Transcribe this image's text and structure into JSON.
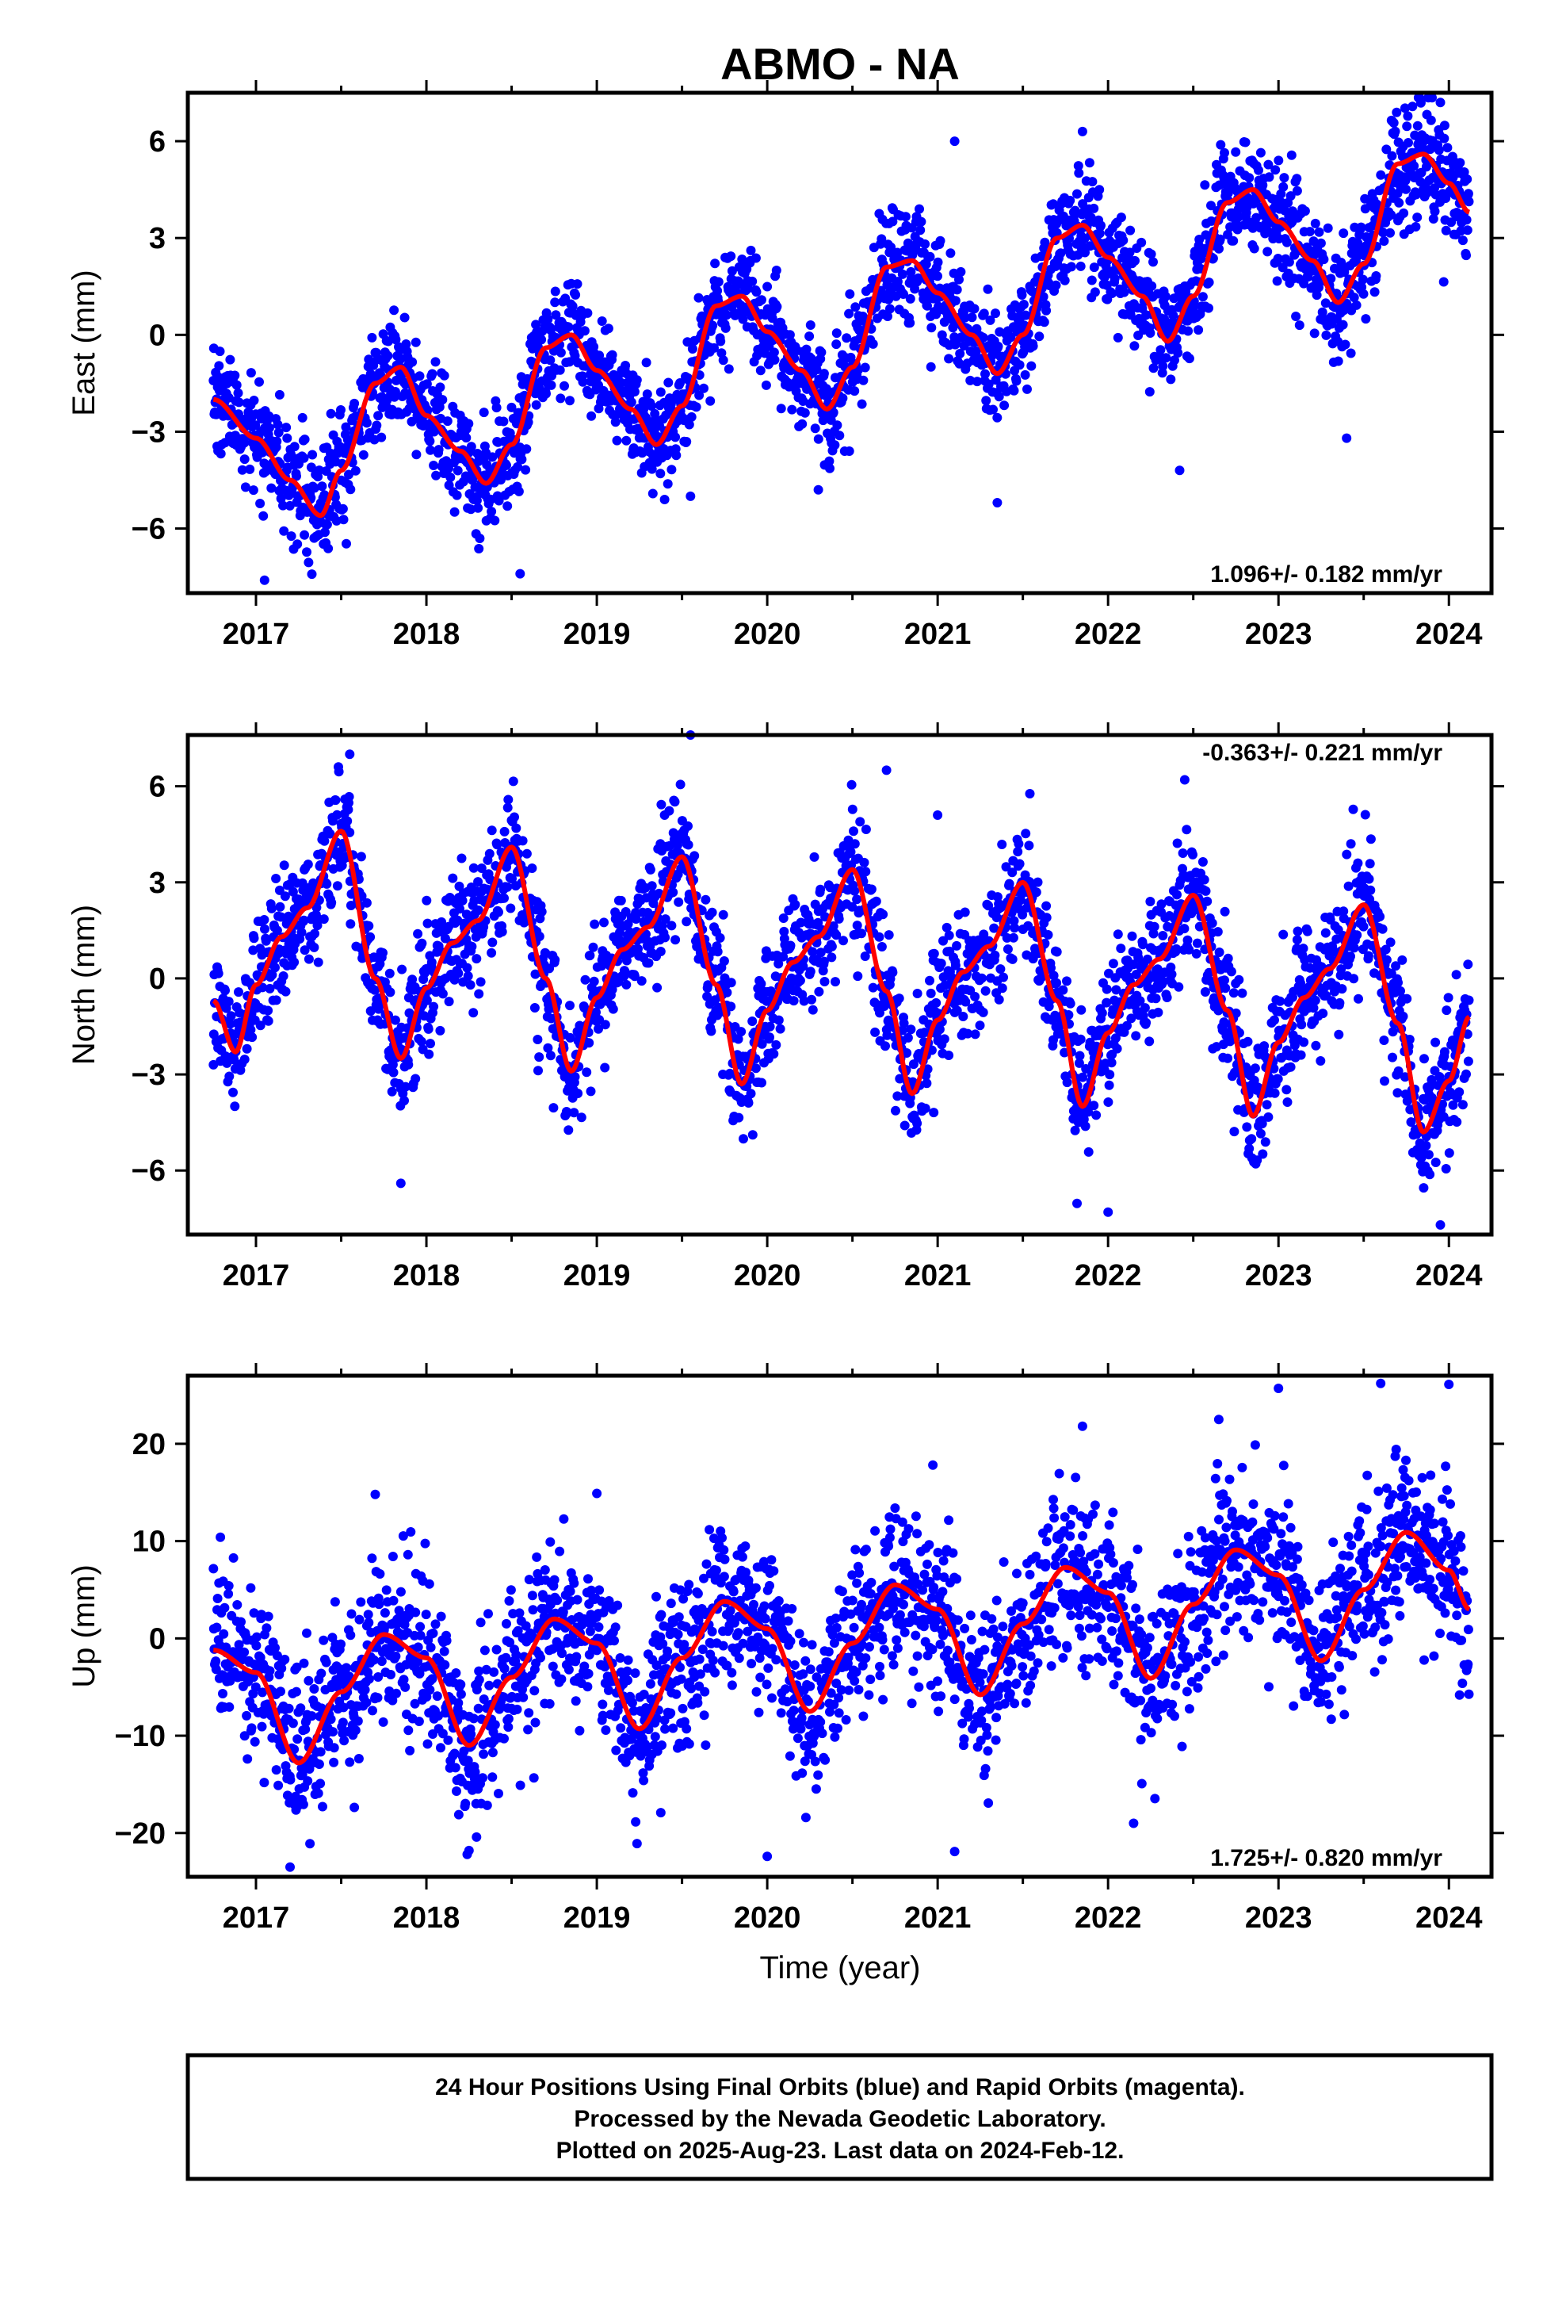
{
  "title": "ABMO - NA",
  "xlabel": "Time (year)",
  "footer": {
    "line1": "24 Hour Positions Using Final Orbits (blue) and Rapid Orbits (magenta).",
    "line2": "Processed by the Nevada Geodetic Laboratory.",
    "line3": "Plotted on 2025-Aug-23. Last data on 2024-Feb-12."
  },
  "colors": {
    "points": "#0000ff",
    "model": "#ff0000",
    "frame": "#000000"
  },
  "chart_data": [
    {
      "type": "scatter",
      "ylabel": "East (mm)",
      "xlim": [
        2016.6,
        2024.25
      ],
      "ylim": [
        -8,
        7.5
      ],
      "x_ticks": [
        2017,
        2018,
        2019,
        2020,
        2021,
        2022,
        2023,
        2024
      ],
      "y_ticks": [
        -6,
        -3,
        0,
        3,
        6
      ],
      "y_tick_labels": [
        "−6",
        "−3",
        "0",
        "3",
        "6"
      ],
      "rate_text": "1.096+/- 0.182 mm/yr",
      "rate_position": "bottom-right",
      "data_range": [
        2016.75,
        2024.12
      ],
      "model": {
        "name": "model",
        "x": [
          2016.75,
          2017.0,
          2017.2,
          2017.38,
          2017.5,
          2017.7,
          2017.85,
          2018.0,
          2018.2,
          2018.35,
          2018.5,
          2018.7,
          2018.85,
          2019.0,
          2019.2,
          2019.35,
          2019.5,
          2019.7,
          2019.85,
          2020.0,
          2020.2,
          2020.35,
          2020.5,
          2020.7,
          2020.85,
          2021.0,
          2021.2,
          2021.35,
          2021.5,
          2021.7,
          2021.85,
          2022.0,
          2022.2,
          2022.35,
          2022.5,
          2022.7,
          2022.85,
          2023.0,
          2023.2,
          2023.35,
          2023.5,
          2023.7,
          2023.85,
          2024.0,
          2024.12
        ],
        "y": [
          -2.0,
          -3.2,
          -4.5,
          -5.6,
          -4.2,
          -1.5,
          -1.0,
          -2.5,
          -3.6,
          -4.6,
          -3.4,
          -0.4,
          0.0,
          -1.1,
          -2.3,
          -3.4,
          -2.2,
          0.9,
          1.2,
          0.1,
          -1.1,
          -2.3,
          -1.0,
          2.1,
          2.3,
          1.3,
          0.0,
          -1.2,
          0.0,
          3.0,
          3.4,
          2.4,
          1.2,
          -0.2,
          1.2,
          4.1,
          4.5,
          3.5,
          2.3,
          1.0,
          2.2,
          5.3,
          5.6,
          4.7,
          3.8
        ]
      },
      "seasonal": {
        "noise_sd": 0.85
      },
      "outliers": [
        [
          2017.05,
          -7.6
        ],
        [
          2018.55,
          -7.4
        ],
        [
          2021.35,
          -5.2
        ],
        [
          2022.42,
          -4.2
        ],
        [
          2023.4,
          -3.2
        ],
        [
          2021.1,
          6.0
        ],
        [
          2019.55,
          -5.0
        ],
        [
          2023.95,
          7.2
        ],
        [
          2021.85,
          6.3
        ],
        [
          2020.3,
          -4.8
        ]
      ]
    },
    {
      "type": "scatter",
      "ylabel": "North (mm)",
      "xlim": [
        2016.6,
        2024.25
      ],
      "ylim": [
        -8,
        7.6
      ],
      "x_ticks": [
        2017,
        2018,
        2019,
        2020,
        2021,
        2022,
        2023,
        2024
      ],
      "y_ticks": [
        -6,
        -3,
        0,
        3,
        6
      ],
      "y_tick_labels": [
        "−6",
        "−3",
        "0",
        "3",
        "6"
      ],
      "rate_text": "-0.363+/- 0.221 mm/yr",
      "rate_position": "top-right",
      "data_range": [
        2016.75,
        2024.12
      ],
      "model": {
        "name": "model",
        "x": [
          2016.75,
          2016.88,
          2017.0,
          2017.15,
          2017.3,
          2017.5,
          2017.7,
          2017.85,
          2018.0,
          2018.15,
          2018.3,
          2018.5,
          2018.7,
          2018.85,
          2019.0,
          2019.15,
          2019.3,
          2019.5,
          2019.7,
          2019.85,
          2020.0,
          2020.15,
          2020.3,
          2020.5,
          2020.7,
          2020.85,
          2021.0,
          2021.15,
          2021.3,
          2021.5,
          2021.7,
          2021.85,
          2022.0,
          2022.15,
          2022.3,
          2022.5,
          2022.7,
          2022.85,
          2023.0,
          2023.15,
          2023.3,
          2023.5,
          2023.7,
          2023.85,
          2024.0,
          2024.12
        ],
        "y": [
          -0.7,
          -2.3,
          -0.2,
          1.3,
          2.2,
          4.6,
          0.0,
          -2.5,
          -0.3,
          1.1,
          1.8,
          4.1,
          0.0,
          -2.9,
          -0.6,
          0.9,
          1.6,
          3.8,
          -0.2,
          -3.3,
          -1.0,
          0.5,
          1.3,
          3.4,
          -0.4,
          -3.6,
          -1.3,
          0.2,
          1.0,
          3.0,
          -0.7,
          -4.0,
          -1.7,
          -0.2,
          0.6,
          2.6,
          -1.0,
          -4.3,
          -2.0,
          -0.6,
          0.3,
          2.3,
          -1.4,
          -4.8,
          -3.2,
          -1.2
        ]
      },
      "seasonal": {
        "noise_sd": 1.0
      },
      "outliers": [
        [
          2019.55,
          7.6
        ],
        [
          2022.45,
          6.2
        ],
        [
          2023.95,
          -7.7
        ],
        [
          2022.0,
          -7.3
        ],
        [
          2017.85,
          -6.4
        ],
        [
          2020.7,
          6.5
        ],
        [
          2017.55,
          7.0
        ],
        [
          2021.0,
          5.1
        ]
      ]
    },
    {
      "type": "scatter",
      "ylabel": "Up (mm)",
      "xlim": [
        2016.6,
        2024.25
      ],
      "ylim": [
        -24.5,
        27
      ],
      "x_ticks": [
        2017,
        2018,
        2019,
        2020,
        2021,
        2022,
        2023,
        2024
      ],
      "y_ticks": [
        -20,
        -10,
        0,
        10,
        20
      ],
      "y_tick_labels": [
        "−20",
        "−10",
        "0",
        "10",
        "20"
      ],
      "rate_text": "1.725+/- 0.820 mm/yr",
      "rate_position": "bottom-right",
      "data_range": [
        2016.75,
        2024.12
      ],
      "model": {
        "name": "model",
        "x": [
          2016.75,
          2017.0,
          2017.25,
          2017.5,
          2017.75,
          2018.0,
          2018.25,
          2018.5,
          2018.75,
          2019.0,
          2019.25,
          2019.5,
          2019.75,
          2020.0,
          2020.25,
          2020.5,
          2020.75,
          2021.0,
          2021.25,
          2021.5,
          2021.75,
          2022.0,
          2022.25,
          2022.5,
          2022.75,
          2023.0,
          2023.25,
          2023.5,
          2023.75,
          2024.0,
          2024.12
        ],
        "y": [
          -1.2,
          -3.5,
          -12.8,
          -5.5,
          0.4,
          -2.0,
          -11.0,
          -4.0,
          2.0,
          -0.5,
          -9.3,
          -2.0,
          3.8,
          1.0,
          -7.5,
          -0.5,
          5.5,
          3.0,
          -5.8,
          1.5,
          7.3,
          4.7,
          -4.1,
          3.5,
          9.1,
          6.5,
          -2.3,
          5.0,
          10.9,
          7.0,
          3.0
        ]
      },
      "seasonal": {
        "noise_sd": 4.2
      },
      "outliers": [
        [
          2017.2,
          -23.5
        ],
        [
          2018.25,
          -21.8
        ],
        [
          2020.0,
          -22.4
        ],
        [
          2021.1,
          -21.9
        ],
        [
          2022.15,
          -19.0
        ],
        [
          2023.0,
          25.7
        ],
        [
          2023.6,
          26.2
        ],
        [
          2024.0,
          26.1
        ],
        [
          2022.65,
          22.5
        ],
        [
          2021.85,
          21.8
        ],
        [
          2017.7,
          14.8
        ],
        [
          2019.0,
          14.9
        ]
      ]
    }
  ]
}
